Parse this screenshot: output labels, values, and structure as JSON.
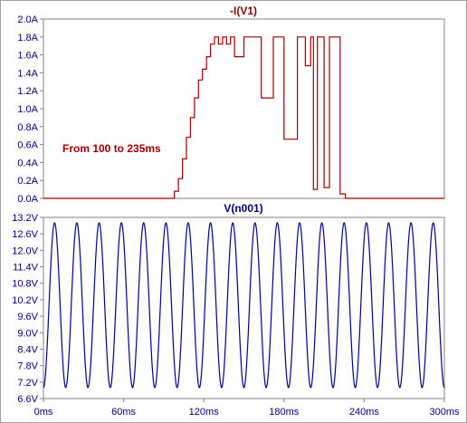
{
  "chart_data": [
    {
      "type": "line",
      "title": "-I(V1)",
      "color": "#a00000",
      "ylim": [
        0.0,
        2.0
      ],
      "yticks": [
        "0.0A",
        "0.2A",
        "0.4A",
        "0.6A",
        "0.8A",
        "1.0A",
        "1.2A",
        "1.4A",
        "1.6A",
        "1.8A",
        "2.0A"
      ],
      "annotation": "From 100 to 235ms",
      "x": [
        0,
        98,
        98,
        101,
        101,
        104,
        104,
        107,
        107,
        110,
        110,
        113,
        113,
        116,
        116,
        119,
        119,
        122,
        122,
        125,
        125,
        128,
        128,
        131,
        131,
        134,
        134,
        137,
        137,
        140,
        140,
        143,
        143,
        150,
        150,
        158,
        158,
        163,
        163,
        172,
        172,
        180,
        180,
        190,
        190,
        196,
        196,
        200,
        200,
        202,
        202,
        205,
        205,
        208,
        208,
        210,
        210,
        214,
        214,
        219,
        219,
        222,
        222,
        226,
        226,
        236,
        236,
        300
      ],
      "y": [
        0,
        0,
        0.08,
        0.08,
        0.22,
        0.22,
        0.44,
        0.44,
        0.68,
        0.68,
        0.9,
        0.9,
        1.12,
        1.12,
        1.32,
        1.32,
        1.44,
        1.44,
        1.58,
        1.58,
        1.72,
        1.72,
        1.8,
        1.8,
        1.72,
        1.72,
        1.8,
        1.8,
        1.72,
        1.72,
        1.8,
        1.8,
        1.58,
        1.58,
        1.8,
        1.8,
        1.8,
        1.8,
        1.12,
        1.12,
        1.8,
        1.8,
        0.66,
        0.66,
        1.8,
        1.8,
        1.48,
        1.48,
        1.8,
        1.8,
        0.1,
        0.1,
        1.8,
        1.8,
        1.8,
        1.8,
        0.12,
        0.12,
        1.8,
        1.8,
        1.8,
        1.8,
        0.05,
        0.05,
        0.0,
        0.0,
        0.0,
        0.0
      ]
    },
    {
      "type": "line",
      "title": "V(n001)",
      "color": "#00008b",
      "ylim": [
        6.6,
        13.2
      ],
      "yticks": [
        "6.6V",
        "7.2V",
        "7.8V",
        "8.4V",
        "9.0V",
        "9.6V",
        "10.2V",
        "10.8V",
        "11.4V",
        "12.0V",
        "12.6V",
        "13.2V"
      ],
      "xlim": [
        0,
        300
      ],
      "xticks": [
        "0ms",
        "60ms",
        "120ms",
        "180ms",
        "240ms",
        "300ms"
      ],
      "sine": {
        "offset": 10.0,
        "amplitude": 3.0,
        "frequency_hz": 60,
        "phase_deg": -90
      }
    }
  ]
}
